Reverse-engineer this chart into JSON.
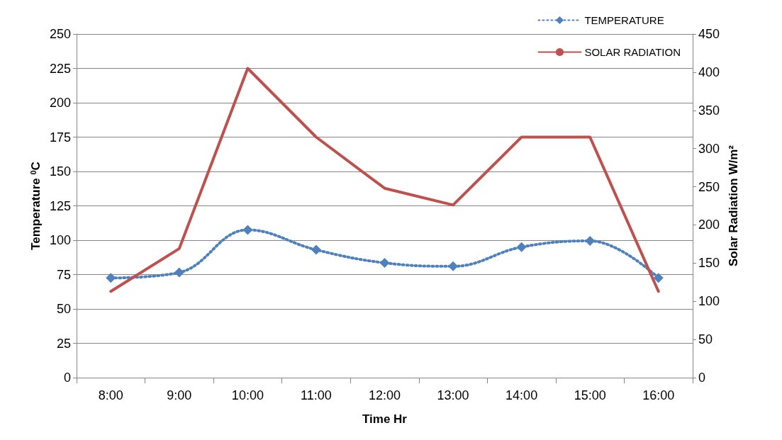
{
  "chart_data": {
    "type": "line",
    "xlabel": "Time Hr",
    "ylabel": "Temperature $^{0}$C",
    "y2label": "Solar Radiation W/m²",
    "categories": [
      "8:00",
      "9:00",
      "10:00",
      "11:00",
      "12:00",
      "13:00",
      "14:00",
      "15:00",
      "16:00"
    ],
    "series": [
      {
        "name": "TEMPERATURE",
        "color": "#4f81bd",
        "values": [
          72.5,
          76.5,
          107.5,
          93,
          83.5,
          81,
          95,
          99.5,
          72.5
        ],
        "marker": "diamond",
        "line_style": "dotted"
      },
      {
        "name": "SOLAR RADIATION",
        "color": "#c0504d",
        "values": [
          113,
          169,
          405,
          315,
          248,
          226,
          315,
          315,
          113
        ],
        "axis": "y2",
        "marker": "none",
        "line_style": "solid"
      }
    ],
    "ylim": [
      0,
      250
    ],
    "yticks": [
      0,
      25,
      50,
      75,
      100,
      125,
      150,
      175,
      200,
      225,
      250
    ],
    "y2lim": [
      0,
      450
    ],
    "y2ticks": [
      0,
      50,
      100,
      150,
      200,
      250,
      300,
      350,
      400,
      450
    ],
    "grid": "y",
    "legend": "top right"
  }
}
